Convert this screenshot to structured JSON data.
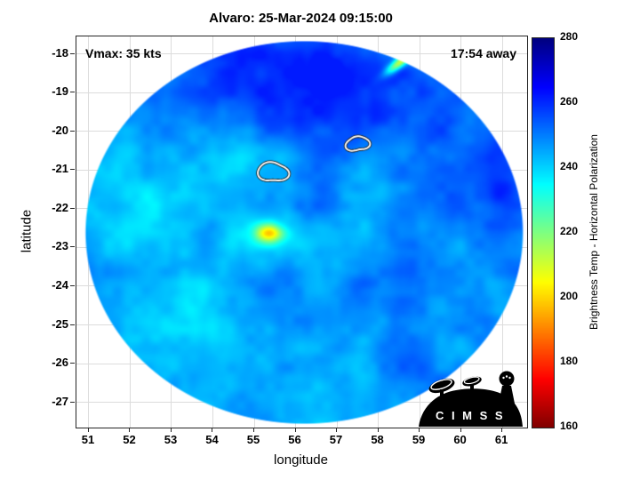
{
  "logo": {
    "text": "C I M S S"
  },
  "chart_data": {
    "type": "heatmap",
    "title": "Alvaro: 25-Mar-2024 09:15:00",
    "xlabel": "longitude",
    "ylabel": "latitude",
    "xlim": [
      50.7,
      61.6
    ],
    "ylim": [
      -27.65,
      -17.55
    ],
    "xticks": [
      51,
      52,
      53,
      54,
      55,
      56,
      57,
      58,
      59,
      60,
      61
    ],
    "yticks": [
      -18,
      -19,
      -20,
      -21,
      -22,
      -23,
      -24,
      -25,
      -26,
      -27
    ],
    "grid": true,
    "annotations": [
      {
        "text": "Vmax: 35 kts",
        "position": "top-left"
      },
      {
        "text": "17:54 away",
        "position": "top-right"
      }
    ],
    "colorbar": {
      "label": "Brightness Temp - Horizontal Polarization",
      "min": 160,
      "max": 280,
      "ticks": [
        160,
        180,
        200,
        220,
        240,
        260,
        280
      ],
      "colormap": "jet-reversed (280=dark blue, 160=dark red)"
    },
    "swath": {
      "shape": "circular microwave swath",
      "center_lon": 56.2,
      "center_lat": -22.6,
      "base_temp_k": 247,
      "noise_amp_k": 10
    },
    "features": [
      {
        "note": "yellow cold core",
        "lon": 55.35,
        "lat": -22.62,
        "sx": 0.22,
        "sy": 0.16,
        "rot": 0,
        "amp_k": -38
      },
      {
        "note": "green fringe",
        "lon": 55.35,
        "lat": -22.62,
        "sx": 0.55,
        "sy": 0.4,
        "rot": 0,
        "amp_k": -8
      },
      {
        "note": "yellow streak top-right",
        "lon": 58.5,
        "lat": -18.22,
        "sx": 0.3,
        "sy": 0.09,
        "rot": -40,
        "amp_k": -42
      },
      {
        "note": "deep blue north 1",
        "lon": 55.2,
        "lat": -19.0,
        "sx": 1.7,
        "sy": 0.95,
        "rot": 0,
        "amp_k": 8
      },
      {
        "note": "deep blue north 2",
        "lon": 57.6,
        "lat": -19.6,
        "sx": 1.3,
        "sy": 0.9,
        "rot": 0,
        "amp_k": 7
      },
      {
        "note": "deep blue north rim",
        "lon": 56.5,
        "lat": -18.1,
        "sx": 1.6,
        "sy": 0.6,
        "rot": 0,
        "amp_k": 8
      },
      {
        "note": "deep blue east",
        "lon": 60.4,
        "lat": -20.9,
        "sx": 0.8,
        "sy": 1.5,
        "rot": 0,
        "amp_k": 6
      },
      {
        "note": "east rim streak",
        "lon": 60.9,
        "lat": -21.6,
        "sx": 0.35,
        "sy": 1.2,
        "rot": 0,
        "amp_k": 7
      },
      {
        "note": "cyan southwest",
        "lon": 53.2,
        "lat": -25.2,
        "sx": 1.5,
        "sy": 1.0,
        "rot": 0,
        "amp_k": -7
      },
      {
        "note": "cyan south",
        "lon": 56.6,
        "lat": -25.7,
        "sx": 1.8,
        "sy": 0.8,
        "rot": 0,
        "amp_k": -5
      },
      {
        "note": "cyan west",
        "lon": 52.4,
        "lat": -21.8,
        "sx": 1.0,
        "sy": 1.5,
        "rot": 0,
        "amp_k": -5
      },
      {
        "note": "cyan mid-west",
        "lon": 54.3,
        "lat": -20.5,
        "sx": 1.0,
        "sy": 0.8,
        "rot": 0,
        "amp_k": -4
      },
      {
        "note": "deep blue southeast band",
        "lon": 58.8,
        "lat": -26.1,
        "sx": 2.0,
        "sy": 0.55,
        "rot": 35,
        "amp_k": 6
      }
    ],
    "contours": [
      {
        "note": "white vortex contour west",
        "lon": 55.45,
        "lat": -21.05,
        "r_lon": 0.33,
        "r_lat": 0.27
      },
      {
        "note": "white vortex contour east",
        "lon": 57.5,
        "lat": -20.32,
        "r_lon": 0.26,
        "r_lat": 0.2
      }
    ]
  }
}
